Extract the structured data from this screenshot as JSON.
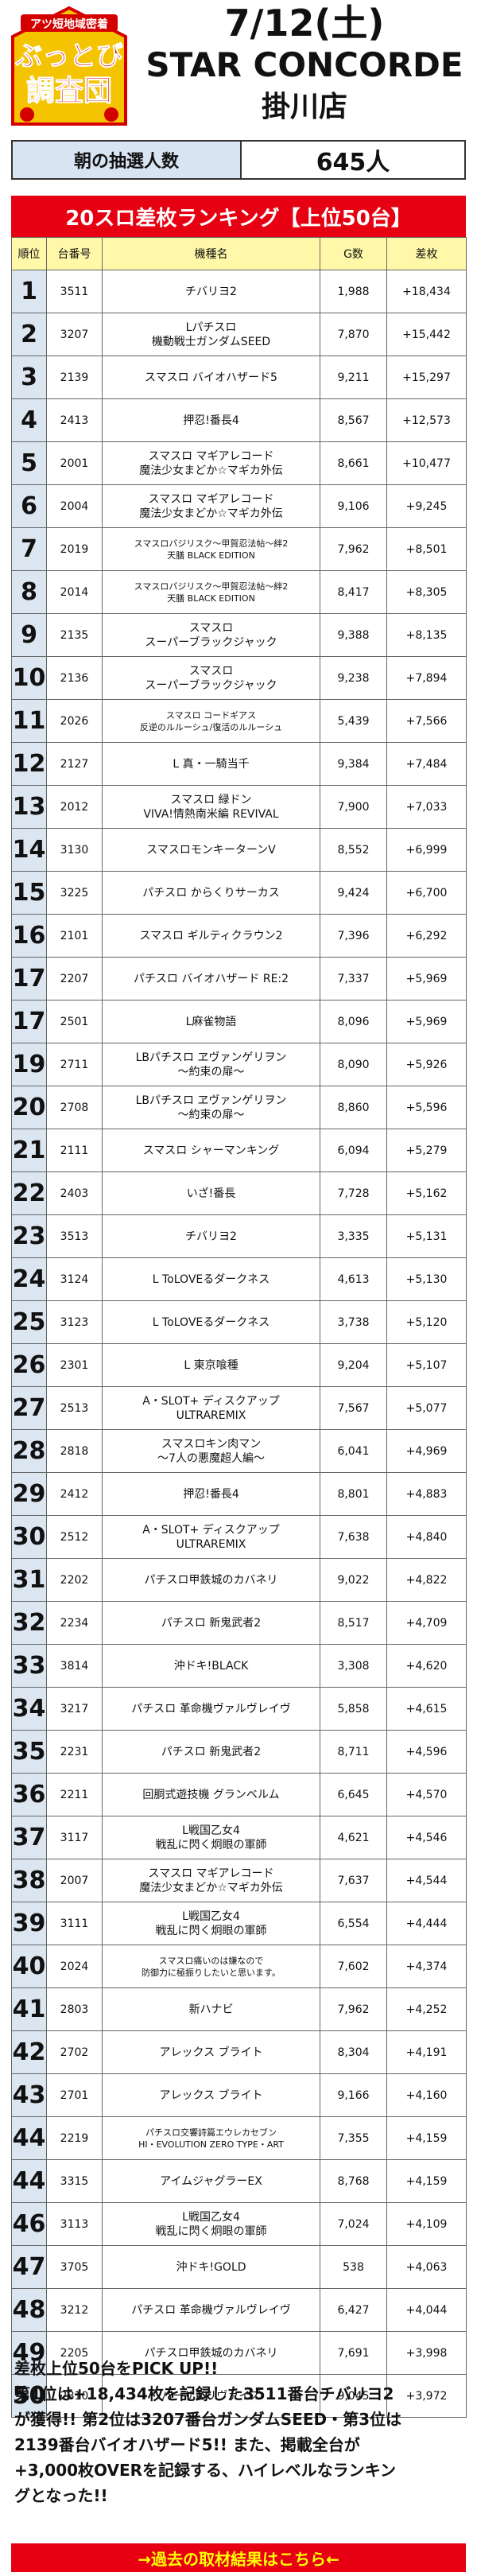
{
  "header": {
    "logo_lines": [
      "アツ短地域密着",
      "ぶっとび",
      "調査団"
    ],
    "date": "7/12(土)",
    "store": "STAR CONCORDE",
    "branch": "掛川店"
  },
  "lottery": {
    "label": "朝の抽選人数",
    "value": "645人"
  },
  "banner": "20スロ差枚ランキング【上位50台】",
  "table": {
    "headers": [
      "順位",
      "台番号",
      "機種名",
      "G数",
      "差枚"
    ],
    "rows": [
      {
        "rank": "1",
        "machine": "3511",
        "name": "チバリヨ2",
        "g": "1,988",
        "diff": "+18,434"
      },
      {
        "rank": "2",
        "machine": "3207",
        "name": "Lパチスロ\n機動戦士ガンダムSEED",
        "g": "7,870",
        "diff": "+15,442"
      },
      {
        "rank": "3",
        "machine": "2139",
        "name": "スマスロ バイオハザード5",
        "g": "9,211",
        "diff": "+15,297"
      },
      {
        "rank": "4",
        "machine": "2413",
        "name": "押忍!番長4",
        "g": "8,567",
        "diff": "+12,573"
      },
      {
        "rank": "5",
        "machine": "2001",
        "name": "スマスロ マギアレコード\n魔法少女まどか☆マギカ外伝",
        "g": "8,661",
        "diff": "+10,477"
      },
      {
        "rank": "6",
        "machine": "2004",
        "name": "スマスロ マギアレコード\n魔法少女まどか☆マギカ外伝",
        "g": "9,106",
        "diff": "+9,245"
      },
      {
        "rank": "7",
        "machine": "2019",
        "name": "スマスロバジリスク～甲賀忍法帖～絆2\n天膳 BLACK EDITION",
        "g": "7,962",
        "diff": "+8,501",
        "small": true
      },
      {
        "rank": "8",
        "machine": "2014",
        "name": "スマスロバジリスク～甲賀忍法帖～絆2\n天膳 BLACK EDITION",
        "g": "8,417",
        "diff": "+8,305",
        "small": true
      },
      {
        "rank": "9",
        "machine": "2135",
        "name": "スマスロ\nスーパーブラックジャック",
        "g": "9,388",
        "diff": "+8,135"
      },
      {
        "rank": "10",
        "machine": "2136",
        "name": "スマスロ\nスーパーブラックジャック",
        "g": "9,238",
        "diff": "+7,894"
      },
      {
        "rank": "11",
        "machine": "2026",
        "name": "スマスロ コードギアス\n反逆のルルーシュ/復活のルルーシュ",
        "g": "5,439",
        "diff": "+7,566",
        "small": true
      },
      {
        "rank": "12",
        "machine": "2127",
        "name": "L 真・一騎当千",
        "g": "9,384",
        "diff": "+7,484"
      },
      {
        "rank": "13",
        "machine": "2012",
        "name": "スマスロ 緑ドン\nVIVA!情熱南米編 REVIVAL",
        "g": "7,900",
        "diff": "+7,033"
      },
      {
        "rank": "14",
        "machine": "3130",
        "name": "スマスロモンキーターンV",
        "g": "8,552",
        "diff": "+6,999"
      },
      {
        "rank": "15",
        "machine": "3225",
        "name": "パチスロ からくりサーカス",
        "g": "9,424",
        "diff": "+6,700"
      },
      {
        "rank": "16",
        "machine": "2101",
        "name": "スマスロ ギルティクラウン2",
        "g": "7,396",
        "diff": "+6,292"
      },
      {
        "rank": "17",
        "machine": "2207",
        "name": "パチスロ バイオハザード RE:2",
        "g": "7,337",
        "diff": "+5,969"
      },
      {
        "rank": "17",
        "machine": "2501",
        "name": "L麻雀物語",
        "g": "8,096",
        "diff": "+5,969"
      },
      {
        "rank": "19",
        "machine": "2711",
        "name": "LBパチスロ ヱヴァンゲリヲン\n～約束の扉～",
        "g": "8,090",
        "diff": "+5,926"
      },
      {
        "rank": "20",
        "machine": "2708",
        "name": "LBパチスロ ヱヴァンゲリヲン\n～約束の扉～",
        "g": "8,860",
        "diff": "+5,596"
      },
      {
        "rank": "21",
        "machine": "2111",
        "name": "スマスロ シャーマンキング",
        "g": "6,094",
        "diff": "+5,279"
      },
      {
        "rank": "22",
        "machine": "2403",
        "name": "いざ!番長",
        "g": "7,728",
        "diff": "+5,162"
      },
      {
        "rank": "23",
        "machine": "3513",
        "name": "チバリヨ2",
        "g": "3,335",
        "diff": "+5,131"
      },
      {
        "rank": "24",
        "machine": "3124",
        "name": "L ToLOVEるダークネス",
        "g": "4,613",
        "diff": "+5,130"
      },
      {
        "rank": "25",
        "machine": "3123",
        "name": "L ToLOVEるダークネス",
        "g": "3,738",
        "diff": "+5,120"
      },
      {
        "rank": "26",
        "machine": "2301",
        "name": "L 東京喰種",
        "g": "9,204",
        "diff": "+5,107"
      },
      {
        "rank": "27",
        "machine": "2513",
        "name": "A・SLOT+ ディスクアップ\nULTRAREMIX",
        "g": "7,567",
        "diff": "+5,077"
      },
      {
        "rank": "28",
        "machine": "2818",
        "name": "スマスロキン肉マン\n～7人の悪魔超人編～",
        "g": "6,041",
        "diff": "+4,969"
      },
      {
        "rank": "29",
        "machine": "2412",
        "name": "押忍!番長4",
        "g": "8,801",
        "diff": "+4,883"
      },
      {
        "rank": "30",
        "machine": "2512",
        "name": "A・SLOT+ ディスクアップ\nULTRAREMIX",
        "g": "7,638",
        "diff": "+4,840"
      },
      {
        "rank": "31",
        "machine": "2202",
        "name": "パチスロ甲鉄城のカバネリ",
        "g": "9,022",
        "diff": "+4,822"
      },
      {
        "rank": "32",
        "machine": "2234",
        "name": "パチスロ 新鬼武者2",
        "g": "8,517",
        "diff": "+4,709"
      },
      {
        "rank": "33",
        "machine": "3814",
        "name": "沖ドキ!BLACK",
        "g": "3,308",
        "diff": "+4,620"
      },
      {
        "rank": "34",
        "machine": "3217",
        "name": "パチスロ 革命機ヴァルヴレイヴ",
        "g": "5,858",
        "diff": "+4,615"
      },
      {
        "rank": "35",
        "machine": "2231",
        "name": "パチスロ 新鬼武者2",
        "g": "8,711",
        "diff": "+4,596"
      },
      {
        "rank": "36",
        "machine": "2211",
        "name": "回胴式遊技機 グランベルム",
        "g": "6,645",
        "diff": "+4,570"
      },
      {
        "rank": "37",
        "machine": "3117",
        "name": "L戦国乙女4\n戦乱に閃く炯眼の軍師",
        "g": "4,621",
        "diff": "+4,546"
      },
      {
        "rank": "38",
        "machine": "2007",
        "name": "スマスロ マギアレコード\n魔法少女まどか☆マギカ外伝",
        "g": "7,637",
        "diff": "+4,544"
      },
      {
        "rank": "39",
        "machine": "3111",
        "name": "L戦国乙女4\n戦乱に閃く炯眼の軍師",
        "g": "6,554",
        "diff": "+4,444"
      },
      {
        "rank": "40",
        "machine": "2024",
        "name": "スマスロ痛いのは嫌なので\n防御力に極振りしたいと思います。",
        "g": "7,602",
        "diff": "+4,374",
        "small": true
      },
      {
        "rank": "41",
        "machine": "2803",
        "name": "新ハナビ",
        "g": "7,962",
        "diff": "+4,252"
      },
      {
        "rank": "42",
        "machine": "2702",
        "name": "アレックス ブライト",
        "g": "8,304",
        "diff": "+4,191"
      },
      {
        "rank": "43",
        "machine": "2701",
        "name": "アレックス ブライト",
        "g": "9,166",
        "diff": "+4,160"
      },
      {
        "rank": "44",
        "machine": "2219",
        "name": "パチスロ交響詩篇エウレカセブン\nHI・EVOLUTION ZERO TYPE・ART",
        "g": "7,355",
        "diff": "+4,159",
        "small": true
      },
      {
        "rank": "44",
        "machine": "3315",
        "name": "アイムジャグラーEX",
        "g": "8,768",
        "diff": "+4,159"
      },
      {
        "rank": "46",
        "machine": "3113",
        "name": "L戦国乙女4\n戦乱に閃く炯眼の軍師",
        "g": "7,024",
        "diff": "+4,109"
      },
      {
        "rank": "47",
        "machine": "3705",
        "name": "沖ドキ!GOLD",
        "g": "538",
        "diff": "+4,063"
      },
      {
        "rank": "48",
        "machine": "3212",
        "name": "パチスロ 革命機ヴァルヴレイヴ",
        "g": "6,427",
        "diff": "+4,044"
      },
      {
        "rank": "49",
        "machine": "2205",
        "name": "パチスロ甲鉄城のカバネリ",
        "g": "7,691",
        "diff": "+3,998"
      },
      {
        "rank": "50",
        "machine": "2810",
        "name": "バーサスリヴァイズ",
        "g": "9,045",
        "diff": "+3,972"
      }
    ]
  },
  "summary": {
    "lines": [
      "差枚上位50台をPICK UP!!",
      "第1位は+18,434枚を記録した3511番台チバリヨ2",
      "が獲得!! 第2位は3207番台ガンダムSEED・第3位は",
      "2139番台バイオハザード5!! また、掲載全台が",
      "+3,000枚OVERを記録する、ハイレベルなランキン",
      "グとなった!!"
    ]
  },
  "footer_link": "→過去の取材結果はこちら←",
  "colors": {
    "banner_red": "#e60012",
    "rank_blue": "#dce6f1",
    "header_yellow": "#fff8a8",
    "lottery_blue": "#d9e4f2"
  }
}
